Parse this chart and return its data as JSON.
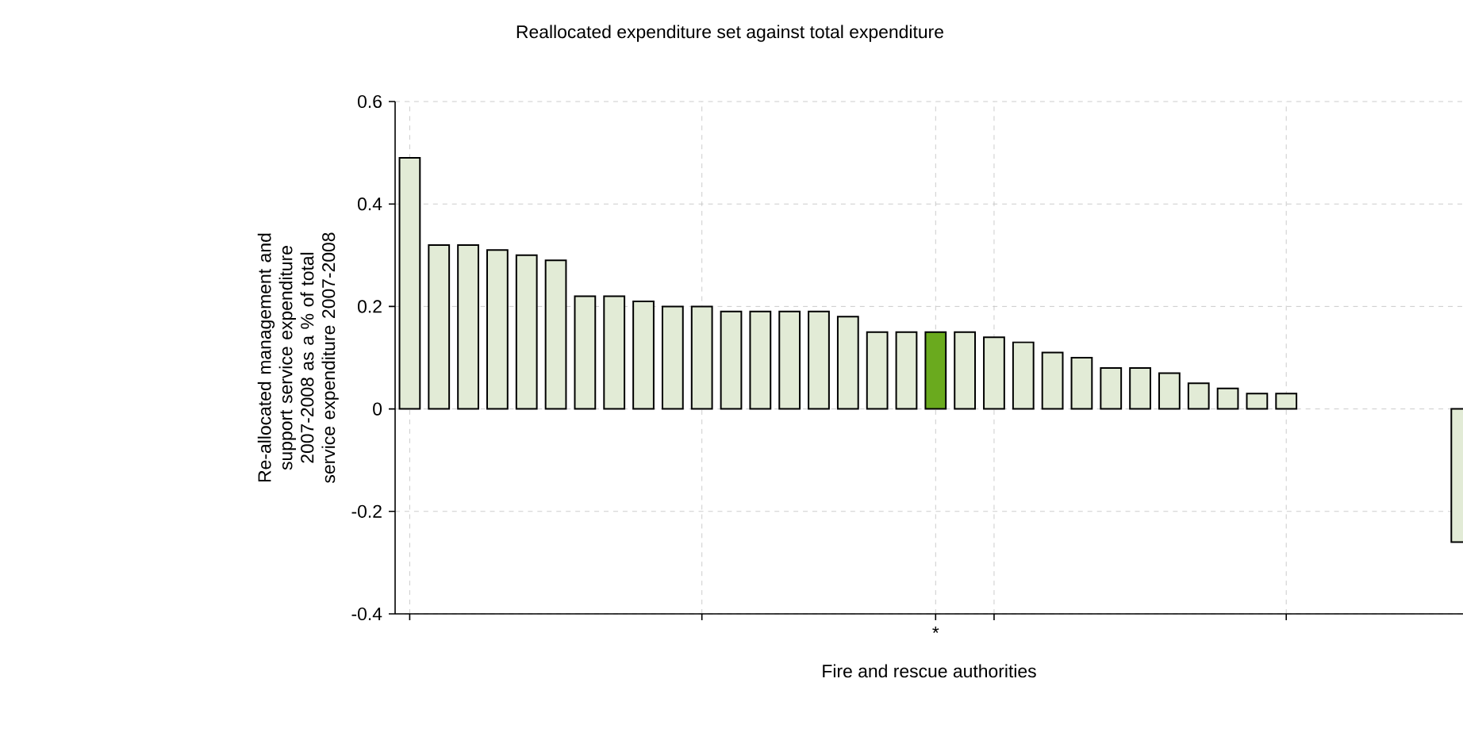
{
  "chart_data": {
    "type": "bar",
    "title": "Reallocated expenditure set against total expenditure",
    "xlabel": "Fire and rescue authorities",
    "ylabel": "Re-allocated management and support service expenditure 2007-2008 as a % of total service expenditure 2007-2008",
    "categories": [
      null,
      null,
      null,
      null,
      null,
      null,
      null,
      null,
      null,
      null,
      null,
      null,
      null,
      null,
      null,
      null,
      null,
      null,
      "*",
      null,
      null,
      null,
      null,
      null,
      null,
      null,
      null,
      null,
      null,
      null,
      null,
      null,
      null,
      null,
      null,
      null,
      null
    ],
    "values": [
      0.49,
      0.32,
      0.32,
      0.31,
      0.3,
      0.29,
      0.22,
      0.22,
      0.21,
      0.2,
      0.2,
      0.19,
      0.19,
      0.19,
      0.19,
      0.18,
      0.15,
      0.15,
      0.15,
      0.15,
      0.14,
      0.13,
      0.11,
      0.1,
      0.08,
      0.08,
      0.07,
      0.05,
      0.04,
      0.03,
      0.03,
      null,
      null,
      null,
      null,
      null,
      -0.26
    ],
    "colors": [
      "#e2ebd6",
      "#e2ebd6",
      "#e2ebd6",
      "#e2ebd6",
      "#e2ebd6",
      "#e2ebd6",
      "#e2ebd6",
      "#e2ebd6",
      "#e2ebd6",
      "#e2ebd6",
      "#e2ebd6",
      "#e2ebd6",
      "#e2ebd6",
      "#e2ebd6",
      "#e2ebd6",
      "#e2ebd6",
      "#e2ebd6",
      "#e2ebd6",
      "#6aaa1e",
      "#e2ebd6",
      "#e2ebd6",
      "#e2ebd6",
      "#e2ebd6",
      "#e2ebd6",
      "#e2ebd6",
      "#e2ebd6",
      "#e2ebd6",
      "#e2ebd6",
      "#e2ebd6",
      "#e2ebd6",
      "#e2ebd6",
      "#e2ebd6",
      "#e2ebd6",
      "#e2ebd6",
      "#e2ebd6",
      "#e2ebd6",
      "#e2ebd6"
    ],
    "ylim": [
      -0.4,
      0.6
    ],
    "yticks": [
      -0.4,
      -0.2,
      0,
      0.2,
      0.4,
      0.6
    ],
    "grid": true
  }
}
